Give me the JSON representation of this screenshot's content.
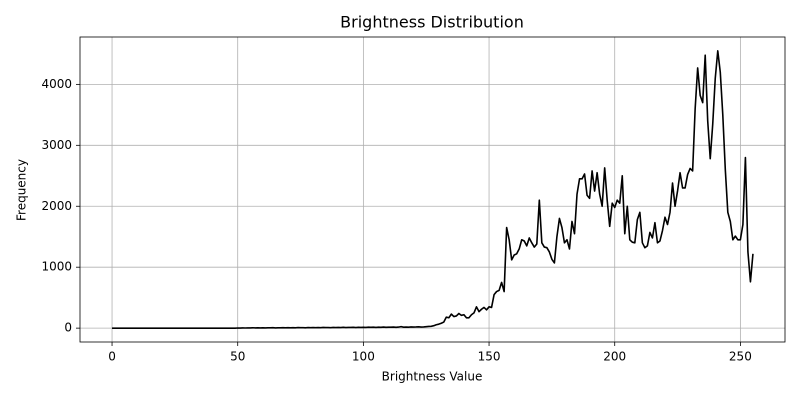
{
  "chart_data": {
    "type": "line",
    "title": "Brightness Distribution",
    "x_label": "Brightness Value",
    "y_label": "Frequency",
    "x": [
      0,
      1,
      2,
      3,
      4,
      5,
      6,
      7,
      8,
      9,
      10,
      11,
      12,
      13,
      14,
      15,
      16,
      17,
      18,
      19,
      20,
      21,
      22,
      23,
      24,
      25,
      26,
      27,
      28,
      29,
      30,
      31,
      32,
      33,
      34,
      35,
      36,
      37,
      38,
      39,
      40,
      41,
      42,
      43,
      44,
      45,
      46,
      47,
      48,
      49,
      50,
      51,
      52,
      53,
      54,
      55,
      56,
      57,
      58,
      59,
      60,
      61,
      62,
      63,
      64,
      65,
      66,
      67,
      68,
      69,
      70,
      71,
      72,
      73,
      74,
      75,
      76,
      77,
      78,
      79,
      80,
      81,
      82,
      83,
      84,
      85,
      86,
      87,
      88,
      89,
      90,
      91,
      92,
      93,
      94,
      95,
      96,
      97,
      98,
      99,
      100,
      101,
      102,
      103,
      104,
      105,
      106,
      107,
      108,
      109,
      110,
      111,
      112,
      113,
      114,
      115,
      116,
      117,
      118,
      119,
      120,
      121,
      122,
      123,
      124,
      125,
      126,
      127,
      128,
      129,
      130,
      131,
      132,
      133,
      134,
      135,
      136,
      137,
      138,
      139,
      140,
      141,
      142,
      143,
      144,
      145,
      146,
      147,
      148,
      149,
      150,
      151,
      152,
      153,
      154,
      155,
      156,
      157,
      158,
      159,
      160,
      161,
      162,
      163,
      164,
      165,
      166,
      167,
      168,
      169,
      170,
      171,
      172,
      173,
      174,
      175,
      176,
      177,
      178,
      179,
      180,
      181,
      182,
      183,
      184,
      185,
      186,
      187,
      188,
      189,
      190,
      191,
      192,
      193,
      194,
      195,
      196,
      197,
      198,
      199,
      200,
      201,
      202,
      203,
      204,
      205,
      206,
      207,
      208,
      209,
      210,
      211,
      212,
      213,
      214,
      215,
      216,
      217,
      218,
      219,
      220,
      221,
      222,
      223,
      224,
      225,
      226,
      227,
      228,
      229,
      230,
      231,
      232,
      233,
      234,
      235,
      236,
      237,
      238,
      239,
      240,
      241,
      242,
      243,
      244,
      245,
      246,
      247,
      248,
      249,
      250,
      251,
      252,
      253,
      254,
      255
    ],
    "series": [
      {
        "name": "Frequency",
        "color": "#000000",
        "values": [
          0,
          0,
          0,
          0,
          0,
          0,
          0,
          0,
          0,
          0,
          0,
          0,
          0,
          0,
          0,
          0,
          0,
          0,
          0,
          0,
          0,
          0,
          0,
          0,
          0,
          0,
          0,
          0,
          0,
          0,
          0,
          0,
          0,
          0,
          0,
          0,
          0,
          0,
          0,
          0,
          0,
          0,
          0,
          0,
          0,
          0,
          0,
          0,
          0,
          0,
          2,
          1,
          3,
          2,
          4,
          3,
          5,
          4,
          6,
          3,
          5,
          4,
          6,
          5,
          7,
          4,
          6,
          5,
          8,
          6,
          7,
          5,
          8,
          6,
          9,
          7,
          8,
          6,
          10,
          8,
          9,
          7,
          10,
          8,
          11,
          9,
          10,
          8,
          12,
          9,
          11,
          10,
          13,
          9,
          12,
          11,
          14,
          10,
          13,
          12,
          14,
          12,
          15,
          13,
          16,
          12,
          15,
          14,
          17,
          13,
          16,
          15,
          18,
          14,
          17,
          25,
          16,
          18,
          15,
          20,
          17,
          19,
          22,
          18,
          20,
          24,
          28,
          30,
          40,
          55,
          65,
          80,
          100,
          180,
          170,
          230,
          190,
          200,
          240,
          210,
          220,
          170,
          170,
          220,
          250,
          350,
          270,
          310,
          340,
          300,
          350,
          340,
          550,
          600,
          620,
          750,
          600,
          1650,
          1450,
          1120,
          1200,
          1220,
          1300,
          1450,
          1430,
          1350,
          1480,
          1400,
          1330,
          1380,
          2100,
          1400,
          1330,
          1320,
          1250,
          1130,
          1070,
          1500,
          1800,
          1650,
          1400,
          1450,
          1300,
          1750,
          1550,
          2200,
          2450,
          2450,
          2530,
          2180,
          2130,
          2580,
          2250,
          2550,
          2200,
          2000,
          2630,
          2100,
          1670,
          2050,
          1980,
          2100,
          2050,
          2500,
          1550,
          2000,
          1450,
          1410,
          1400,
          1780,
          1900,
          1400,
          1320,
          1350,
          1570,
          1480,
          1730,
          1400,
          1430,
          1600,
          1820,
          1700,
          1900,
          2380,
          2000,
          2250,
          2550,
          2300,
          2300,
          2520,
          2620,
          2580,
          3600,
          4270,
          3820,
          3700,
          4480,
          3400,
          2780,
          3350,
          4100,
          4550,
          4200,
          3500,
          2600,
          1900,
          1750,
          1450,
          1510,
          1450,
          1450,
          1700,
          2800,
          1250,
          760,
          1220
        ]
      }
    ],
    "xlim": [
      -12.75,
      267.75
    ],
    "xticks": [
      0,
      50,
      100,
      150,
      200,
      250
    ],
    "ylim": [
      -227.5,
      4777.5
    ],
    "yticks": [
      0,
      1000,
      2000,
      3000,
      4000
    ],
    "grid": true
  }
}
